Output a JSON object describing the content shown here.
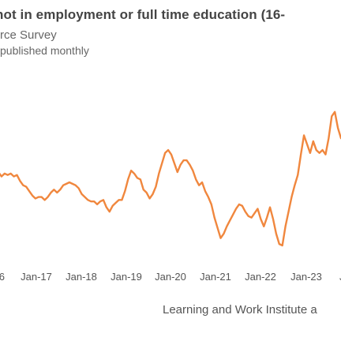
{
  "title": "not in employment or full time education (16-",
  "subtitle": "rce Survey",
  "note": "published monthly",
  "source": "Learning and Work Institute a",
  "colors": {
    "line": "#f0873e",
    "title": "#444444",
    "text": "#666666"
  },
  "chart_data": {
    "type": "line",
    "x_tick_labels": [
      "6",
      "Jan-17",
      "Jan-18",
      "Jan-19",
      "Jan-20",
      "Jan-21",
      "Jan-22",
      "Jan-23",
      "J"
    ],
    "series": [
      {
        "values": [
          57,
          54,
          56,
          55,
          56,
          54,
          55,
          51,
          48,
          47,
          44,
          41,
          39,
          40,
          40,
          38,
          40,
          43,
          45,
          43,
          45,
          48,
          49,
          50,
          49,
          48,
          46,
          42,
          40,
          38,
          37,
          37,
          35,
          37,
          38,
          33,
          30,
          34,
          36,
          38,
          38,
          44,
          52,
          58,
          56,
          53,
          52,
          45,
          43,
          39,
          42,
          47,
          56,
          63,
          70,
          72,
          69,
          63,
          57,
          62,
          65,
          65,
          62,
          58,
          52,
          48,
          50,
          44,
          40,
          35,
          26,
          19,
          12,
          15,
          20,
          24,
          28,
          32,
          35,
          34,
          30,
          27,
          26,
          29,
          32,
          25,
          20,
          26,
          33,
          25,
          15,
          8,
          7,
          20,
          30,
          40,
          48,
          55,
          69,
          82,
          76,
          70,
          78,
          72,
          70,
          72,
          69,
          80,
          95,
          98,
          87,
          80
        ]
      }
    ]
  }
}
